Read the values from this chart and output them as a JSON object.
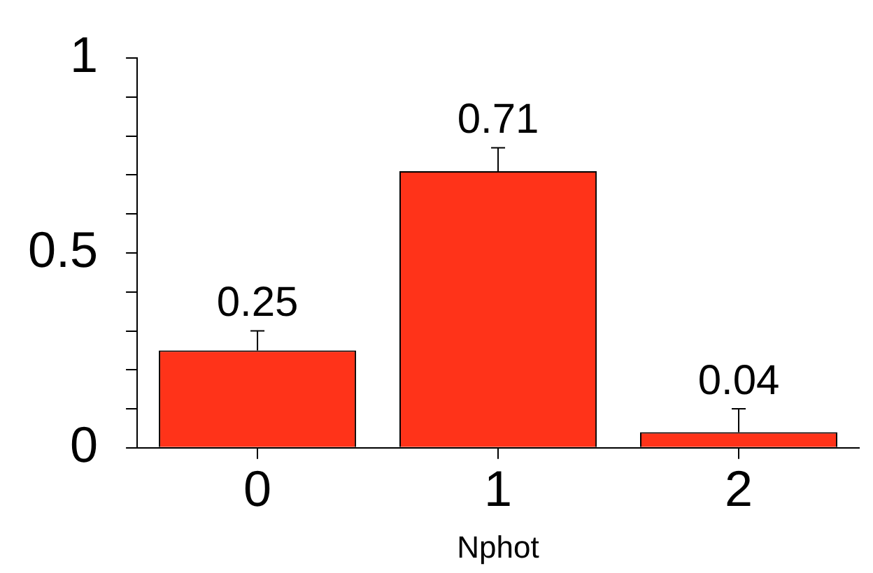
{
  "chart_data": {
    "type": "bar",
    "xlabel": "Nphot",
    "categories": [
      "0",
      "1",
      "2"
    ],
    "values": [
      0.25,
      0.71,
      0.04
    ],
    "errors": [
      [
        0.25,
        0.3
      ],
      [
        0.71,
        0.77
      ],
      [
        0.04,
        0.1
      ]
    ],
    "color": "#ff3319",
    "data_labels": true,
    "ylim": [
      0,
      1
    ],
    "yticks": [
      0,
      {
        "value": 0.1,
        "label": null
      },
      {
        "value": 0.2,
        "label": null
      },
      {
        "value": 0.3,
        "label": null
      },
      {
        "value": 0.4,
        "label": null
      },
      0.5,
      {
        "value": 0.6,
        "label": null
      },
      {
        "value": 0.7,
        "label": null
      },
      {
        "value": 0.8,
        "label": null
      },
      {
        "value": 0.9,
        "label": null
      },
      1
    ],
    "grid": false,
    "legend": false
  }
}
